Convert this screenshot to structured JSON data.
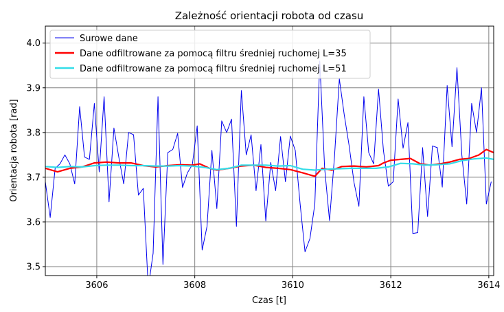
{
  "chart_data": {
    "type": "line",
    "title": "Zależność orientacji robota od czasu",
    "xlabel": "Czas [t]",
    "ylabel": "Orientacja robota [rad]",
    "xlim": [
      3604.95,
      3614.1
    ],
    "ylim": [
      3.48,
      4.038
    ],
    "xticks": [
      3606,
      3608,
      3610,
      3612,
      3614
    ],
    "yticks": [
      3.5,
      3.6,
      3.7,
      3.8,
      3.9,
      4.0
    ],
    "grid": true,
    "legend_position": "upper-left",
    "series": [
      {
        "name": "Surowe dane",
        "color": "#0000ee",
        "x": [
          3604.95,
          3605.05,
          3605.15,
          3605.25,
          3605.35,
          3605.45,
          3605.55,
          3605.65,
          3605.75,
          3605.85,
          3605.95,
          3606.05,
          3606.15,
          3606.25,
          3606.35,
          3606.45,
          3606.55,
          3606.65,
          3606.75,
          3606.85,
          3606.95,
          3607.05,
          3607.15,
          3607.25,
          3607.35,
          3607.45,
          3607.55,
          3607.65,
          3607.75,
          3607.85,
          3607.95,
          3608.05,
          3608.15,
          3608.25,
          3608.35,
          3608.45,
          3608.55,
          3608.65,
          3608.75,
          3608.85,
          3608.95,
          3609.05,
          3609.15,
          3609.25,
          3609.35,
          3609.45,
          3609.55,
          3609.65,
          3609.75,
          3609.85,
          3609.95,
          3610.05,
          3610.15,
          3610.25,
          3610.35,
          3610.45,
          3610.55,
          3610.65,
          3610.75,
          3610.85,
          3610.95,
          3611.05,
          3611.15,
          3611.25,
          3611.35,
          3611.45,
          3611.55,
          3611.65,
          3611.75,
          3611.85,
          3611.95,
          3612.05,
          3612.15,
          3612.25,
          3612.35,
          3612.45,
          3612.55,
          3612.65,
          3612.75,
          3612.85,
          3612.95,
          3613.05,
          3613.15,
          3613.25,
          3613.35,
          3613.45,
          3613.55,
          3613.65,
          3613.75,
          3613.85,
          3613.95,
          3614.05
        ],
        "y": [
          3.69,
          3.61,
          3.72,
          3.73,
          3.75,
          3.73,
          3.685,
          3.858,
          3.745,
          3.74,
          3.865,
          3.712,
          3.88,
          3.645,
          3.81,
          3.745,
          3.685,
          3.8,
          3.795,
          3.66,
          3.675,
          3.452,
          3.53,
          3.88,
          3.505,
          3.755,
          3.762,
          3.798,
          3.677,
          3.71,
          3.728,
          3.815,
          3.537,
          3.59,
          3.76,
          3.63,
          3.826,
          3.8,
          3.83,
          3.59,
          3.894,
          3.75,
          3.795,
          3.67,
          3.773,
          3.602,
          3.733,
          3.67,
          3.791,
          3.69,
          3.792,
          3.76,
          3.64,
          3.533,
          3.563,
          3.64,
          3.96,
          3.72,
          3.603,
          3.745,
          3.92,
          3.84,
          3.77,
          3.688,
          3.635,
          3.88,
          3.755,
          3.73,
          3.897,
          3.76,
          3.68,
          3.69,
          3.875,
          3.765,
          3.822,
          3.574,
          3.576,
          3.766,
          3.612,
          3.77,
          3.766,
          3.678,
          3.905,
          3.768,
          3.945,
          3.75,
          3.64,
          3.865,
          3.8,
          3.9,
          3.64,
          3.69
        ]
      },
      {
        "name": "Dane odfiltrowane za pomocą filtru średniej ruchomej L=35",
        "color": "#ff0000",
        "x": [
          3604.95,
          3605.2,
          3605.45,
          3605.7,
          3605.95,
          3606.2,
          3606.45,
          3606.7,
          3606.95,
          3607.2,
          3607.45,
          3607.7,
          3607.95,
          3608.1,
          3608.3,
          3608.45,
          3608.7,
          3608.95,
          3609.2,
          3609.45,
          3609.7,
          3609.95,
          3610.2,
          3610.45,
          3610.6,
          3610.8,
          3611.0,
          3611.25,
          3611.5,
          3611.75,
          3611.85,
          3612.0,
          3612.2,
          3612.4,
          3612.6,
          3612.8,
          3613.0,
          3613.2,
          3613.4,
          3613.6,
          3613.8,
          3613.95,
          3614.1
        ],
        "y": [
          3.72,
          3.712,
          3.72,
          3.723,
          3.732,
          3.734,
          3.732,
          3.732,
          3.726,
          3.723,
          3.726,
          3.728,
          3.727,
          3.73,
          3.72,
          3.716,
          3.72,
          3.725,
          3.727,
          3.722,
          3.72,
          3.717,
          3.71,
          3.702,
          3.72,
          3.716,
          3.724,
          3.725,
          3.723,
          3.726,
          3.732,
          3.738,
          3.74,
          3.742,
          3.73,
          3.727,
          3.73,
          3.734,
          3.74,
          3.742,
          3.75,
          3.762,
          3.755
        ]
      },
      {
        "name": "Dane odfiltrowane za pomocą filtru średniej ruchomej L=51",
        "color": "#33dde8",
        "x": [
          3604.95,
          3605.2,
          3605.45,
          3605.7,
          3605.95,
          3606.2,
          3606.45,
          3606.7,
          3606.95,
          3607.2,
          3607.45,
          3607.7,
          3607.95,
          3608.2,
          3608.45,
          3608.7,
          3608.95,
          3609.2,
          3609.45,
          3609.7,
          3609.95,
          3610.2,
          3610.45,
          3610.7,
          3610.95,
          3611.2,
          3611.45,
          3611.7,
          3611.95,
          3612.2,
          3612.45,
          3612.7,
          3612.95,
          3613.2,
          3613.45,
          3613.7,
          3613.95,
          3614.1
        ],
        "y": [
          3.724,
          3.722,
          3.724,
          3.723,
          3.726,
          3.727,
          3.727,
          3.726,
          3.726,
          3.725,
          3.725,
          3.726,
          3.725,
          3.722,
          3.717,
          3.72,
          3.727,
          3.727,
          3.727,
          3.725,
          3.726,
          3.718,
          3.716,
          3.718,
          3.719,
          3.72,
          3.72,
          3.72,
          3.723,
          3.731,
          3.73,
          3.727,
          3.728,
          3.73,
          3.737,
          3.741,
          3.743,
          3.74
        ]
      }
    ]
  }
}
